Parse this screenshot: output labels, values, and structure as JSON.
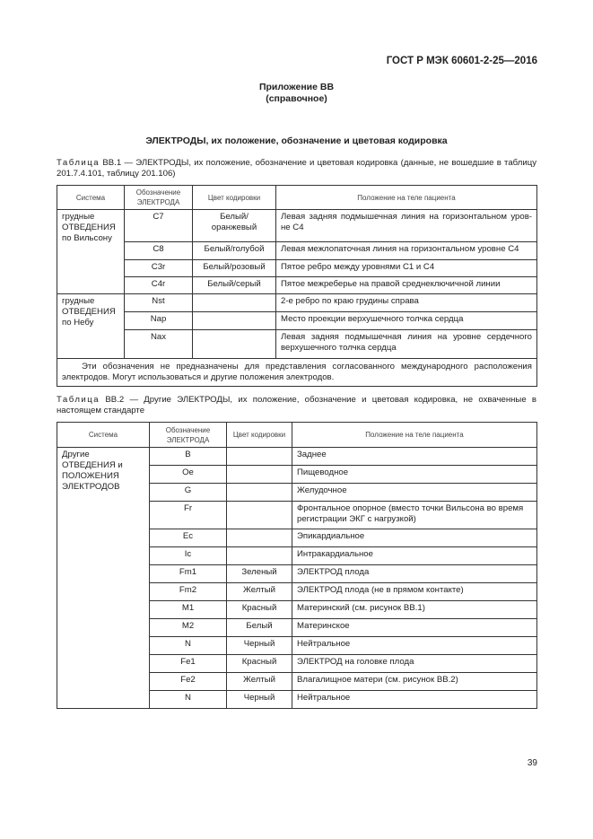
{
  "header": {
    "standard": "ГОСТ Р МЭК 60601-2-25—2016"
  },
  "appendix": {
    "title": "Приложение ВВ",
    "subtitle": "(справочное)"
  },
  "section_title": "ЭЛЕКТРОДЫ, их положение, обозначение и цветовая кодировка",
  "table1": {
    "caption_prefix": "Таблица",
    "caption": "ВВ.1 — ЭЛЕКТРОДЫ, их положение, обозначение и цветовая кодировка (данные, не вошедшие в таблицу 201.7.4.101, таблицу 201.106)",
    "columns": [
      "Система",
      "Обозначение ЭЛЕКТРОДА",
      "Цвет кодировки",
      "Положение на теле пациента"
    ],
    "groups": [
      {
        "system": "грудные ОТВЕДЕНИЯ по Вильсону",
        "rows": [
          {
            "code": "C7",
            "color": "Белый/ оранжевый",
            "position": "Левая задняя подмышечная линия на горизонтальном уров-не С4"
          },
          {
            "code": "C8",
            "color": "Белый/голубой",
            "position": "Левая межлопаточная линия на горизонтальном уровне С4"
          },
          {
            "code": "C3r",
            "color": "Белый/розовый",
            "position": "Пятое ребро между уровнями С1 и С4"
          },
          {
            "code": "C4r",
            "color": "Белый/серый",
            "position": "Пятое межреберье на правой среднеключичной линии"
          }
        ]
      },
      {
        "system": "грудные ОТВЕДЕНИЯ по Небу",
        "rows": [
          {
            "code": "Nst",
            "color": "",
            "position": "2-е ребро по краю грудины справа"
          },
          {
            "code": "Nap",
            "color": "",
            "position": "Место проекции верхушечного толчка сердца"
          },
          {
            "code": "Nax",
            "color": "",
            "position": "Левая задняя подмышечная линия на уровне сердечного верхушечного толчка сердца"
          }
        ]
      }
    ],
    "note": "Эти обозначения не предназначены для представления согласованного международного расположения электродов. Могут использоваться и другие положения электродов."
  },
  "table2": {
    "caption_prefix": "Таблица",
    "caption": "ВВ.2 — Другие ЭЛЕКТРОДЫ, их положение, обозначение и цветовая кодировка, не охваченные в настоящем стандарте",
    "columns": [
      "Система",
      "Обозначение ЭЛЕКТРОДА",
      "Цвет кодировки",
      "Положение на теле пациента"
    ],
    "system": "Другие ОТВЕДЕНИЯ и ПОЛОЖЕНИЯ ЭЛЕКТРОДОВ",
    "rows": [
      {
        "code": "B",
        "color": "",
        "position": "Заднее"
      },
      {
        "code": "Oe",
        "color": "",
        "position": "Пищеводное"
      },
      {
        "code": "G",
        "color": "",
        "position": "Желудочное"
      },
      {
        "code": "Fr",
        "color": "",
        "position": "Фронтальное опорное (вместо точки Вильсона во время регистрации ЭКГ с нагрузкой)"
      },
      {
        "code": "Ec",
        "color": "",
        "position": "Эпикардиальное"
      },
      {
        "code": "Ic",
        "color": "",
        "position": "Интракардиальное"
      },
      {
        "code": "Fm1",
        "color": "Зеленый",
        "position": "ЭЛЕКТРОД плода"
      },
      {
        "code": "Fm2",
        "color": "Желтый",
        "position": "ЭЛЕКТРОД плода (не в прямом контакте)"
      },
      {
        "code": "M1",
        "color": "Красный",
        "position": "Материнский (см. рисунок ВВ.1)"
      },
      {
        "code": "M2",
        "color": "Белый",
        "position": "Материнское"
      },
      {
        "code": "N",
        "color": "Черный",
        "position": "Нейтральное"
      },
      {
        "code": "Fe1",
        "color": "Красный",
        "position": "ЭЛЕКТРОД на головке плода"
      },
      {
        "code": "Fe2",
        "color": "Желтый",
        "position": "Влагалищное матери (см. рисунок ВВ.2)"
      },
      {
        "code": "N",
        "color": "Черный",
        "position": "Нейтральное"
      }
    ]
  },
  "page_number": "39"
}
